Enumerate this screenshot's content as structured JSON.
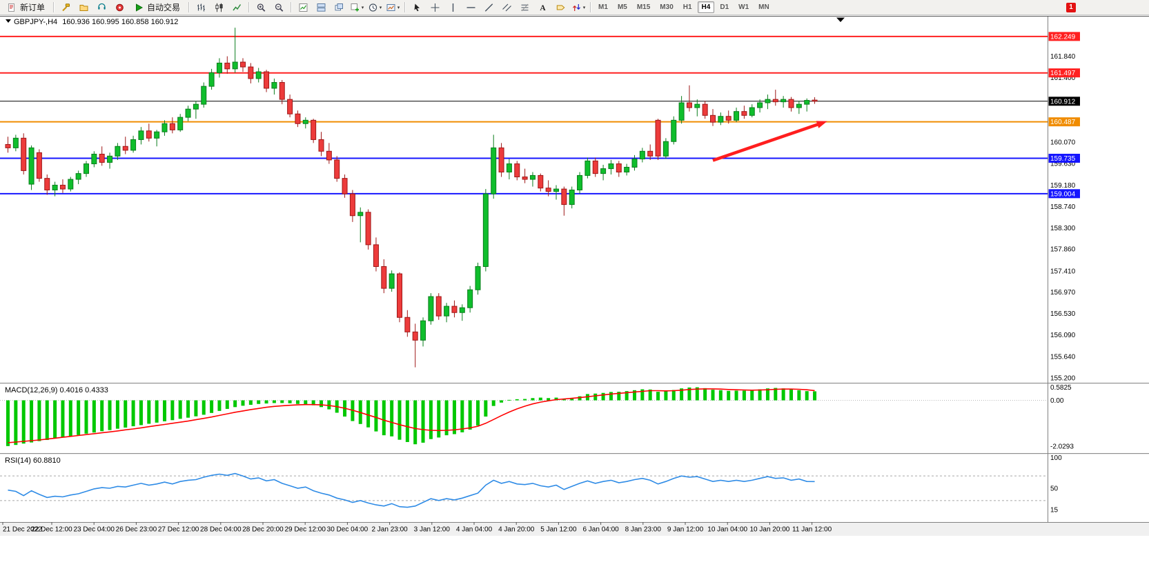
{
  "toolbar": {
    "new_order_label": "新订单",
    "autotrading_label": "自动交易",
    "timeframes": [
      "M1",
      "M5",
      "M15",
      "M30",
      "H1",
      "H4",
      "D1",
      "W1",
      "MN"
    ],
    "active_timeframe": "H4",
    "notification_badge": "1",
    "items": [
      {
        "type": "button",
        "name": "new-order-button",
        "icon": "new-order-icon",
        "label": "新订单"
      },
      {
        "type": "sep"
      },
      {
        "type": "icon",
        "name": "new-chart-icon"
      },
      {
        "type": "icon",
        "name": "profiles-icon"
      },
      {
        "type": "icon",
        "name": "market-watch-icon"
      },
      {
        "type": "icon",
        "name": "data-window-icon"
      },
      {
        "type": "button",
        "name": "autotrading-button",
        "icon": "play-icon",
        "label": "自动交易"
      },
      {
        "type": "sep"
      },
      {
        "type": "icon",
        "name": "bar-chart-icon"
      },
      {
        "type": "icon",
        "name": "candlestick-icon"
      },
      {
        "type": "icon",
        "name": "line-chart-icon"
      },
      {
        "type": "sep"
      },
      {
        "type": "icon",
        "name": "zoom-in-icon"
      },
      {
        "type": "icon",
        "name": "zoom-out-icon"
      },
      {
        "type": "sep"
      },
      {
        "type": "icon",
        "name": "indicators-icon"
      },
      {
        "type": "icon",
        "name": "tile-windows-icon"
      },
      {
        "type": "icon",
        "name": "cascade-windows-icon"
      },
      {
        "type": "icon",
        "name": "add-indicator-icon",
        "arrow": true
      },
      {
        "type": "icon",
        "name": "period-icon",
        "arrow": true
      },
      {
        "type": "icon",
        "name": "template-icon",
        "arrow": true
      },
      {
        "type": "sep"
      },
      {
        "type": "icon",
        "name": "cursor-icon"
      },
      {
        "type": "icon",
        "name": "crosshair-icon"
      },
      {
        "type": "icon",
        "name": "vertical-line-icon"
      },
      {
        "type": "icon",
        "name": "horizontal-line-icon"
      },
      {
        "type": "icon",
        "name": "trendline-icon"
      },
      {
        "type": "icon",
        "name": "equidistant-channel-icon"
      },
      {
        "type": "icon",
        "name": "fibonacci-icon"
      },
      {
        "type": "icon",
        "name": "text-icon"
      },
      {
        "type": "icon",
        "name": "label-icon"
      },
      {
        "type": "icon",
        "name": "arrows-icon",
        "arrow": true
      },
      {
        "type": "sep"
      }
    ]
  },
  "chart_data": [
    {
      "type": "candlestick",
      "symbol": "GBPJPY-",
      "timeframe": "H4",
      "title": "GBPJPY-,H4",
      "ohlc_readout": "160.936 160.995 160.858 160.912",
      "up_color": "#0FBE2C",
      "down_color": "#ED3B3B",
      "price_range": [
        155.13,
        162.66
      ],
      "y_axis_labels": [
        "161.840",
        "161.400",
        "160.070",
        "159.630",
        "159.180",
        "158.740",
        "158.300",
        "157.860",
        "157.410",
        "156.970",
        "156.530",
        "156.090",
        "155.640",
        "155.200"
      ],
      "price_lines": [
        {
          "price": 162.249,
          "label": "162.249",
          "color": "#FF2020",
          "width": 2
        },
        {
          "price": 161.497,
          "label": "161.497",
          "color": "#FF2020",
          "width": 2
        },
        {
          "price": 160.912,
          "label": "160.912",
          "color": "#000000",
          "width": 1
        },
        {
          "price": 160.487,
          "label": "160.487",
          "color": "#F08C00",
          "width": 2
        },
        {
          "price": 159.735,
          "label": "159.735",
          "color": "#1515FF",
          "width": 2
        },
        {
          "price": 159.004,
          "label": "159.004",
          "color": "#1515FF",
          "width": 2
        }
      ],
      "x_labels": [
        "21 Dec 2022",
        "22 Dec 12:00",
        "23 Dec 04:00",
        "26 Dec 23:00",
        "27 Dec 12:00",
        "28 Dec 04:00",
        "28 Dec 20:00",
        "29 Dec 12:00",
        "30 Dec 04:00",
        "2 Jan 23:00",
        "3 Jan 12:00",
        "4 Jan 04:00",
        "4 Jan 20:00",
        "5 Jan 12:00",
        "6 Jan 04:00",
        "8 Jan 23:00",
        "9 Jan 12:00",
        "10 Jan 04:00",
        "10 Jan 20:00",
        "11 Jan 12:00"
      ],
      "candles": [
        [
          160.02,
          160.18,
          159.85,
          159.95
        ],
        [
          159.95,
          160.22,
          159.88,
          160.15
        ],
        [
          160.15,
          160.25,
          159.4,
          159.48
        ],
        [
          159.2,
          160.0,
          159.08,
          159.95
        ],
        [
          159.85,
          159.92,
          159.25,
          159.32
        ],
        [
          159.32,
          159.4,
          158.98,
          159.08
        ],
        [
          159.08,
          159.25,
          158.95,
          159.18
        ],
        [
          159.18,
          159.3,
          159.02,
          159.1
        ],
        [
          159.1,
          159.35,
          159.05,
          159.3
        ],
        [
          159.3,
          159.48,
          159.2,
          159.42
        ],
        [
          159.42,
          159.68,
          159.35,
          159.62
        ],
        [
          159.62,
          159.88,
          159.55,
          159.82
        ],
        [
          159.82,
          159.98,
          159.58,
          159.65
        ],
        [
          159.65,
          159.85,
          159.52,
          159.78
        ],
        [
          159.78,
          160.05,
          159.7,
          159.98
        ],
        [
          159.98,
          160.18,
          159.82,
          159.9
        ],
        [
          159.9,
          160.2,
          159.85,
          160.12
        ],
        [
          160.12,
          160.38,
          160.02,
          160.3
        ],
        [
          160.3,
          160.45,
          160.08,
          160.15
        ],
        [
          160.15,
          160.32,
          159.98,
          160.28
        ],
        [
          160.28,
          160.52,
          160.2,
          160.45
        ],
        [
          160.45,
          160.58,
          160.25,
          160.32
        ],
        [
          160.32,
          160.65,
          160.28,
          160.58
        ],
        [
          160.58,
          160.82,
          160.5,
          160.75
        ],
        [
          160.75,
          160.92,
          160.55,
          160.85
        ],
        [
          160.85,
          161.3,
          160.78,
          161.22
        ],
        [
          161.22,
          161.58,
          161.15,
          161.5
        ],
        [
          161.5,
          161.8,
          161.4,
          161.7
        ],
        [
          161.7,
          161.84,
          161.48,
          161.58
        ],
        [
          161.58,
          162.43,
          161.5,
          161.72
        ],
        [
          161.72,
          161.8,
          161.52,
          161.62
        ],
        [
          161.62,
          161.7,
          161.28,
          161.38
        ],
        [
          161.38,
          161.6,
          161.3,
          161.52
        ],
        [
          161.52,
          161.56,
          161.1,
          161.18
        ],
        [
          161.18,
          161.38,
          161.05,
          161.3
        ],
        [
          161.3,
          161.35,
          160.85,
          160.95
        ],
        [
          160.95,
          161.05,
          160.58,
          160.65
        ],
        [
          160.65,
          160.72,
          160.38,
          160.45
        ],
        [
          160.45,
          160.58,
          160.35,
          160.52
        ],
        [
          160.52,
          160.55,
          160.05,
          160.12
        ],
        [
          160.12,
          160.28,
          159.78,
          159.88
        ],
        [
          159.88,
          160.05,
          159.62,
          159.7
        ],
        [
          159.7,
          159.78,
          159.25,
          159.32
        ],
        [
          159.32,
          159.4,
          158.92,
          159.0
        ],
        [
          159.0,
          159.08,
          158.42,
          158.55
        ],
        [
          158.55,
          158.72,
          158.0,
          158.62
        ],
        [
          158.62,
          158.68,
          157.85,
          157.95
        ],
        [
          157.95,
          158.1,
          157.4,
          157.5
        ],
        [
          157.5,
          157.65,
          156.95,
          157.05
        ],
        [
          157.05,
          157.42,
          156.98,
          157.35
        ],
        [
          157.35,
          157.38,
          156.35,
          156.45
        ],
        [
          156.45,
          156.6,
          156.05,
          156.15
        ],
        [
          156.15,
          156.32,
          155.42,
          155.98
        ],
        [
          155.98,
          156.45,
          155.85,
          156.38
        ],
        [
          156.38,
          156.95,
          156.3,
          156.88
        ],
        [
          156.88,
          156.95,
          156.4,
          156.48
        ],
        [
          156.48,
          156.75,
          156.35,
          156.68
        ],
        [
          156.68,
          156.8,
          156.45,
          156.55
        ],
        [
          156.55,
          156.72,
          156.38,
          156.65
        ],
        [
          156.65,
          157.1,
          156.55,
          157.02
        ],
        [
          157.02,
          157.58,
          156.92,
          157.5
        ],
        [
          157.5,
          159.1,
          157.4,
          159.0
        ],
        [
          159.0,
          160.22,
          158.9,
          159.95
        ],
        [
          159.95,
          160.05,
          159.35,
          159.45
        ],
        [
          159.45,
          159.72,
          159.3,
          159.62
        ],
        [
          159.62,
          159.68,
          159.28,
          159.35
        ],
        [
          159.35,
          159.52,
          159.22,
          159.3
        ],
        [
          159.3,
          159.45,
          159.15,
          159.38
        ],
        [
          159.38,
          159.42,
          159.05,
          159.12
        ],
        [
          159.12,
          159.28,
          158.95,
          159.05
        ],
        [
          159.05,
          159.18,
          158.88,
          159.1
        ],
        [
          159.1,
          159.15,
          158.55,
          158.78
        ],
        [
          158.78,
          159.15,
          158.7,
          159.08
        ],
        [
          159.08,
          159.45,
          159.0,
          159.38
        ],
        [
          159.38,
          159.75,
          159.32,
          159.68
        ],
        [
          159.68,
          159.75,
          159.35,
          159.42
        ],
        [
          159.42,
          159.6,
          159.28,
          159.52
        ],
        [
          159.52,
          159.7,
          159.4,
          159.62
        ],
        [
          159.62,
          159.68,
          159.35,
          159.45
        ],
        [
          159.45,
          159.62,
          159.38,
          159.55
        ],
        [
          159.55,
          159.8,
          159.48,
          159.72
        ],
        [
          159.72,
          159.95,
          159.65,
          159.88
        ],
        [
          159.88,
          160.02,
          159.7,
          159.78
        ],
        [
          160.52,
          160.55,
          159.7,
          159.78
        ],
        [
          159.78,
          160.15,
          159.72,
          160.08
        ],
        [
          160.08,
          160.6,
          160.02,
          160.52
        ],
        [
          160.52,
          161.02,
          160.45,
          160.88
        ],
        [
          160.88,
          161.24,
          160.7,
          160.78
        ],
        [
          160.78,
          160.95,
          160.6,
          160.85
        ],
        [
          160.85,
          160.92,
          160.55,
          160.62
        ],
        [
          160.62,
          160.75,
          160.4,
          160.48
        ],
        [
          160.48,
          160.68,
          160.42,
          160.6
        ],
        [
          160.6,
          160.72,
          160.45,
          160.52
        ],
        [
          160.52,
          160.78,
          160.48,
          160.7
        ],
        [
          160.7,
          160.82,
          160.55,
          160.62
        ],
        [
          160.62,
          160.85,
          160.58,
          160.78
        ],
        [
          160.78,
          160.95,
          160.68,
          160.88
        ],
        [
          160.88,
          161.05,
          160.75,
          160.95
        ],
        [
          160.95,
          161.15,
          160.82,
          160.9
        ],
        [
          160.9,
          161.02,
          160.78,
          160.95
        ],
        [
          160.95,
          161.0,
          160.7,
          160.78
        ],
        [
          160.78,
          160.92,
          160.65,
          160.85
        ],
        [
          160.85,
          160.97,
          160.7,
          160.93
        ],
        [
          160.936,
          160.995,
          160.858,
          160.912
        ]
      ],
      "annotations": [
        {
          "type": "arrow",
          "from_index": 90,
          "from_price": 159.69,
          "to_index": 104.6,
          "to_price": 160.5,
          "color": "#FF1E1E"
        }
      ]
    },
    {
      "type": "bar",
      "name": "MACD",
      "header": "MACD(12,26,9) 0.4016 0.4333",
      "params": "12,26,9",
      "value_main": "0.4016",
      "value_signal": "0.4333",
      "axis_labels": [
        "0.5825",
        "0.00",
        "-2.0293"
      ],
      "axis_values": [
        0.5825,
        0,
        -2.0293
      ],
      "range": [
        -2.28,
        0.72
      ],
      "hist_color": "#00C800",
      "signal_color": "#FF0000",
      "histogram": [
        -2.03,
        -1.98,
        -1.92,
        -1.87,
        -1.81,
        -1.76,
        -1.7,
        -1.65,
        -1.59,
        -1.54,
        -1.48,
        -1.43,
        -1.37,
        -1.32,
        -1.26,
        -1.21,
        -1.15,
        -1.1,
        -1.04,
        -0.99,
        -0.93,
        -0.88,
        -0.82,
        -0.77,
        -0.71,
        -0.64,
        -0.56,
        -0.47,
        -0.38,
        -0.3,
        -0.24,
        -0.2,
        -0.16,
        -0.14,
        -0.12,
        -0.12,
        -0.13,
        -0.16,
        -0.18,
        -0.22,
        -0.3,
        -0.4,
        -0.55,
        -0.72,
        -0.92,
        -1.05,
        -1.2,
        -1.38,
        -1.55,
        -1.6,
        -1.75,
        -1.85,
        -1.95,
        -1.88,
        -1.72,
        -1.65,
        -1.55,
        -1.5,
        -1.42,
        -1.3,
        -1.12,
        -0.72,
        -0.25,
        -0.1,
        0.02,
        0.05,
        0.06,
        0.1,
        0.12,
        0.1,
        0.12,
        0.06,
        0.1,
        0.18,
        0.28,
        0.3,
        0.33,
        0.37,
        0.38,
        0.41,
        0.45,
        0.49,
        0.48,
        0.38,
        0.4,
        0.46,
        0.53,
        0.57,
        0.58,
        0.54,
        0.47,
        0.45,
        0.42,
        0.43,
        0.43,
        0.45,
        0.49,
        0.53,
        0.55,
        0.53,
        0.48,
        0.45,
        0.41,
        0.4
      ],
      "signal": [
        -1.88,
        -1.85,
        -1.82,
        -1.79,
        -1.76,
        -1.72,
        -1.68,
        -1.64,
        -1.6,
        -1.56,
        -1.52,
        -1.48,
        -1.44,
        -1.4,
        -1.36,
        -1.31,
        -1.27,
        -1.22,
        -1.17,
        -1.12,
        -1.07,
        -1.02,
        -0.97,
        -0.92,
        -0.86,
        -0.8,
        -0.74,
        -0.67,
        -0.6,
        -0.53,
        -0.47,
        -0.41,
        -0.36,
        -0.31,
        -0.27,
        -0.24,
        -0.22,
        -0.2,
        -0.19,
        -0.19,
        -0.2,
        -0.23,
        -0.28,
        -0.35,
        -0.44,
        -0.54,
        -0.65,
        -0.76,
        -0.88,
        -0.98,
        -1.08,
        -1.17,
        -1.25,
        -1.3,
        -1.33,
        -1.34,
        -1.33,
        -1.31,
        -1.27,
        -1.22,
        -1.15,
        -1.02,
        -0.85,
        -0.68,
        -0.52,
        -0.38,
        -0.26,
        -0.16,
        -0.08,
        -0.02,
        0.03,
        0.06,
        0.09,
        0.12,
        0.16,
        0.2,
        0.24,
        0.28,
        0.31,
        0.34,
        0.37,
        0.4,
        0.43,
        0.43,
        0.42,
        0.43,
        0.45,
        0.48,
        0.5,
        0.51,
        0.51,
        0.5,
        0.48,
        0.47,
        0.46,
        0.45,
        0.46,
        0.47,
        0.49,
        0.5,
        0.5,
        0.49,
        0.47,
        0.4333
      ]
    },
    {
      "type": "line",
      "name": "RSI",
      "header": "RSI(14) 60.8810",
      "period": "14",
      "value": "60.8810",
      "axis_labels": [
        "100",
        "50",
        "15"
      ],
      "axis_values": [
        100,
        50,
        15
      ],
      "levels": [
        70,
        30
      ],
      "range": [
        -5,
        105
      ],
      "line_color": "#2E8BE6",
      "values": [
        47,
        45,
        38,
        46,
        40,
        35,
        37,
        36,
        39,
        41,
        45,
        49,
        51,
        50,
        53,
        52,
        55,
        58,
        55,
        57,
        60,
        57,
        61,
        63,
        64,
        68,
        71,
        73,
        71,
        74,
        70,
        65,
        67,
        62,
        64,
        58,
        54,
        50,
        52,
        46,
        42,
        39,
        34,
        31,
        27,
        30,
        26,
        23,
        21,
        25,
        20,
        19,
        21,
        27,
        33,
        30,
        33,
        31,
        34,
        38,
        42,
        55,
        63,
        58,
        61,
        57,
        56,
        58,
        54,
        52,
        55,
        48,
        53,
        58,
        62,
        58,
        61,
        63,
        59,
        61,
        64,
        66,
        63,
        57,
        61,
        66,
        70,
        68,
        69,
        65,
        61,
        63,
        61,
        63,
        61,
        63,
        66,
        69,
        66,
        67,
        63,
        65,
        61,
        60.88
      ]
    }
  ]
}
